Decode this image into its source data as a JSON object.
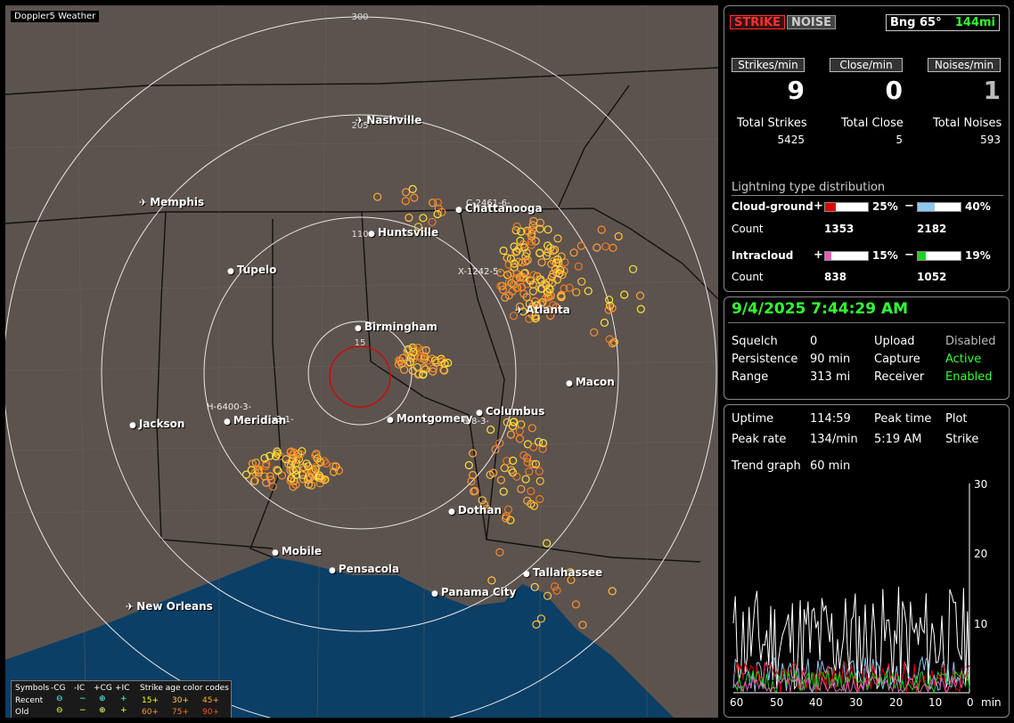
{
  "app_title": "Doppler5 Weather",
  "top_buttons": {
    "strike": "STRIKE",
    "noise": "NOISE"
  },
  "bearing": {
    "label": "Bng 65°",
    "distance": "144mi"
  },
  "rates": {
    "strikes_label": "Strikes/min",
    "close_label": "Close/min",
    "noises_label": "Noises/min",
    "strikes": "9",
    "close": "0",
    "noises": "1"
  },
  "totals": {
    "strikes_label": "Total Strikes",
    "close_label": "Total Close",
    "noises_label": "Total Noises",
    "strikes": "5425",
    "close": "5",
    "noises": "593"
  },
  "distribution": {
    "title": "Lightning type distribution",
    "cg_label": "Cloud-ground",
    "ic_label": "Intracloud",
    "count_label": "Count",
    "plus": "+",
    "minus": "−",
    "cg_pos_pct": "25%",
    "cg_neg_pct": "40%",
    "cg_pos_count": "1353",
    "cg_neg_count": "2182",
    "ic_pos_pct": "15%",
    "ic_neg_pct": "19%",
    "ic_pos_count": "838",
    "ic_neg_count": "1052",
    "fills": {
      "cg_pos": 0.25,
      "cg_neg": 0.4,
      "ic_pos": 0.15,
      "ic_neg": 0.19
    },
    "colors": {
      "cg_pos": "#e00000",
      "cg_neg": "#8ec8f0",
      "ic_pos": "#e060b0",
      "ic_neg": "#20d020"
    }
  },
  "datetime": "9/4/2025 7:44:29 AM",
  "settings": {
    "squelch_label": "Squelch",
    "squelch": "0",
    "persistence_label": "Persistence",
    "persistence": "90 min",
    "range_label": "Range",
    "range": "313 mi",
    "upload_label": "Upload",
    "upload": "Disabled",
    "capture_label": "Capture",
    "capture": "Active",
    "receiver_label": "Receiver",
    "receiver": "Enabled"
  },
  "stats": {
    "uptime_label": "Uptime",
    "uptime": "114:59",
    "peak_time_label": "Peak time",
    "peak_time": "5:19 AM",
    "plot_label": "Plot",
    "plot": "Strike",
    "peak_rate_label": "Peak rate",
    "peak_rate": "134/min",
    "trend_label": "Trend graph",
    "trend": "60 min"
  },
  "trend_axis": {
    "y_ticks": [
      "30",
      "20",
      "10"
    ],
    "x_ticks": [
      "60",
      "50",
      "40",
      "30",
      "20",
      "10",
      "0"
    ],
    "x_unit": "min"
  },
  "range_rings": [
    "300",
    "205",
    "110",
    "15"
  ],
  "cities": [
    {
      "name": "Nashville",
      "type": "airport"
    },
    {
      "name": "Memphis",
      "type": "airport"
    },
    {
      "name": "Chattanooga",
      "type": "city"
    },
    {
      "name": "Huntsville",
      "type": "city"
    },
    {
      "name": "Tupelo",
      "type": "city"
    },
    {
      "name": "Atlanta",
      "type": "airport"
    },
    {
      "name": "Birmingham",
      "type": "city"
    },
    {
      "name": "Macon",
      "type": "city"
    },
    {
      "name": "Jackson",
      "type": "city"
    },
    {
      "name": "Meridian",
      "type": "city"
    },
    {
      "name": "Montgomery",
      "type": "city"
    },
    {
      "name": "Columbus",
      "type": "city"
    },
    {
      "name": "Dothan",
      "type": "city"
    },
    {
      "name": "Mobile",
      "type": "city"
    },
    {
      "name": "Pensacola",
      "type": "city"
    },
    {
      "name": "Tallahassee",
      "type": "city"
    },
    {
      "name": "Panama City",
      "type": "city"
    },
    {
      "name": "New Orleans",
      "type": "airport"
    }
  ],
  "storm_labels": [
    "C-2461-6-",
    "X-1242-5-",
    "H-6400-3-",
    "-3-1-",
    "6-8-3-"
  ],
  "legend": {
    "symbols_label": "Symbols",
    "cols": [
      "-CG",
      "-IC",
      "+CG",
      "+IC"
    ],
    "recent_label": "Recent",
    "old_label": "Old",
    "age_label": "Strike age color codes",
    "ages": [
      "15+",
      "30+",
      "45+",
      "60+",
      "75+",
      "90+"
    ]
  }
}
